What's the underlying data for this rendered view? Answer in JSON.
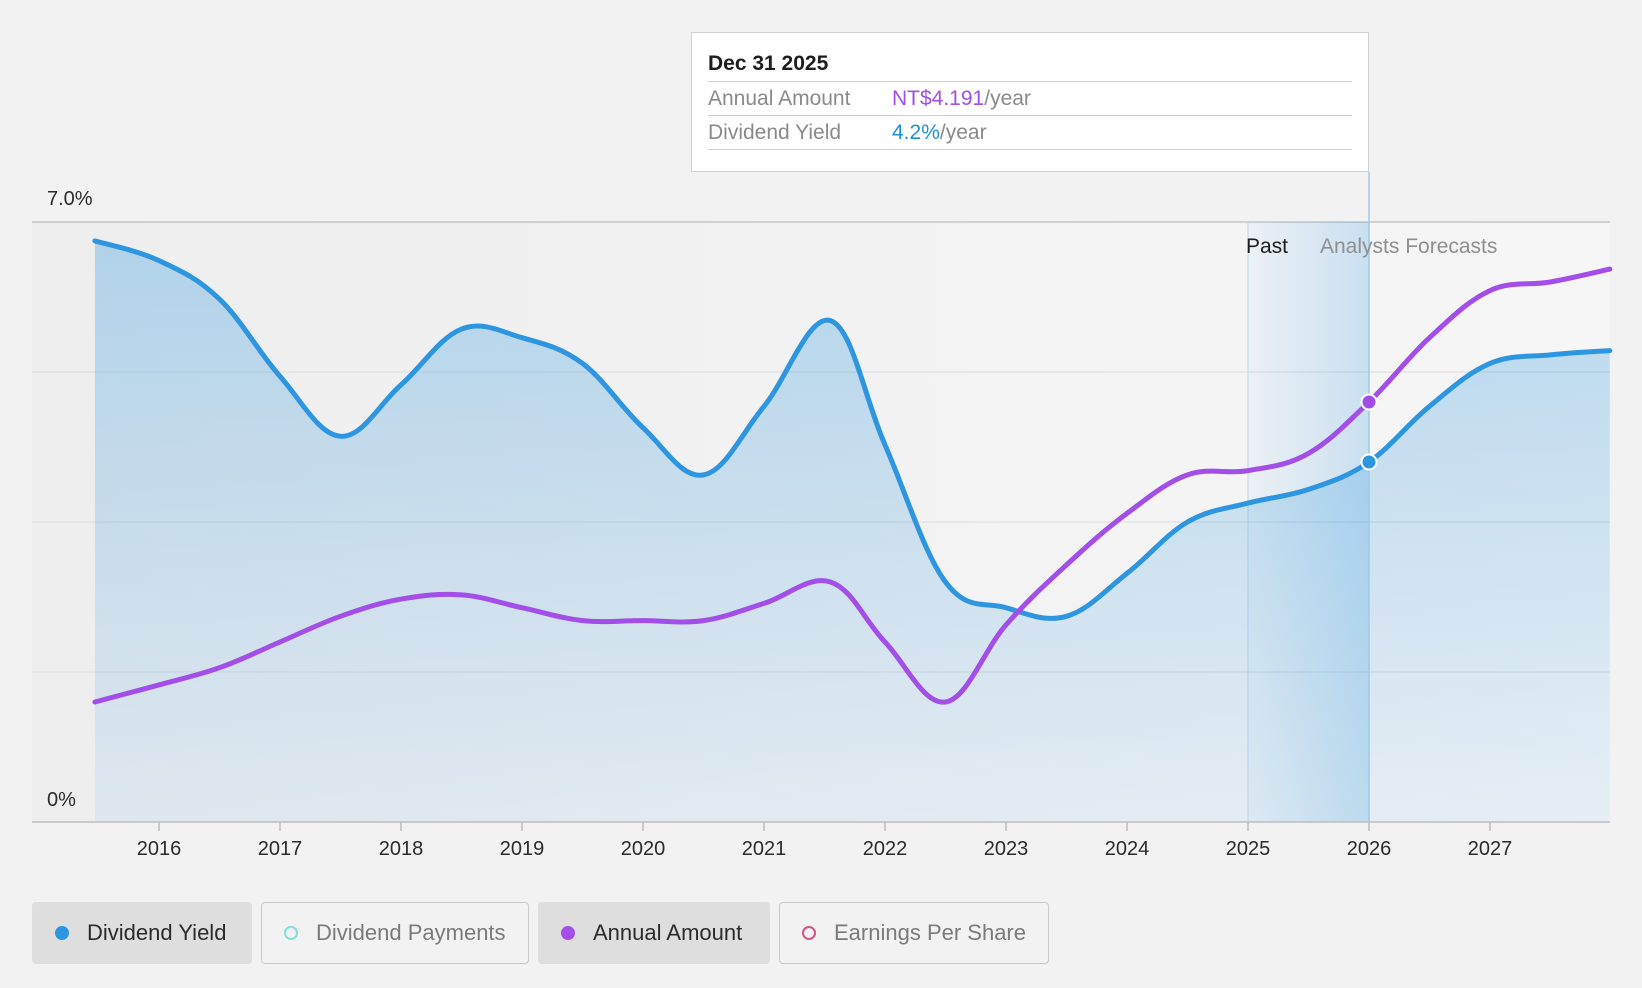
{
  "chart_data": {
    "type": "area",
    "y_axis": {
      "top_label": "7.0%",
      "bottom_label": "0%",
      "ylim": [
        0,
        7.0
      ]
    },
    "x_axis": {
      "tick_labels": [
        "2016",
        "2017",
        "2018",
        "2019",
        "2020",
        "2021",
        "2022",
        "2023",
        "2024",
        "2025",
        "2026",
        "2027"
      ],
      "xlim": [
        2015.5,
        2027.99
      ]
    },
    "grid": true,
    "regions": {
      "past_label": "Past",
      "forecast_label": "Analysts Forecasts"
    },
    "series": [
      {
        "name": "Dividend Yield",
        "unit": "%",
        "color": "#2e96e0",
        "fill": true,
        "points": [
          [
            2015.47,
            6.78
          ],
          [
            2016.0,
            6.55
          ],
          [
            2016.5,
            6.1
          ],
          [
            2017.0,
            5.2
          ],
          [
            2017.5,
            4.5
          ],
          [
            2018.0,
            5.1
          ],
          [
            2018.5,
            5.75
          ],
          [
            2019.0,
            5.65
          ],
          [
            2019.5,
            5.35
          ],
          [
            2020.0,
            4.6
          ],
          [
            2020.5,
            4.05
          ],
          [
            2021.0,
            4.85
          ],
          [
            2021.55,
            5.85
          ],
          [
            2022.0,
            4.4
          ],
          [
            2022.5,
            2.8
          ],
          [
            2023.0,
            2.5
          ],
          [
            2023.5,
            2.4
          ],
          [
            2024.0,
            2.9
          ],
          [
            2024.5,
            3.5
          ],
          [
            2025.0,
            3.72
          ],
          [
            2025.5,
            3.88
          ],
          [
            2026.0,
            4.2
          ],
          [
            2026.5,
            4.85
          ],
          [
            2027.0,
            5.35
          ],
          [
            2027.5,
            5.45
          ],
          [
            2027.99,
            5.5
          ]
        ]
      },
      {
        "name": "Annual Amount",
        "color": "#a34ee8",
        "fill": false,
        "points": [
          [
            2015.47,
            1.4
          ],
          [
            2016.0,
            1.6
          ],
          [
            2016.5,
            1.8
          ],
          [
            2017.0,
            2.1
          ],
          [
            2017.5,
            2.4
          ],
          [
            2018.0,
            2.6
          ],
          [
            2018.5,
            2.65
          ],
          [
            2019.0,
            2.5
          ],
          [
            2019.5,
            2.35
          ],
          [
            2020.0,
            2.35
          ],
          [
            2020.5,
            2.35
          ],
          [
            2021.0,
            2.55
          ],
          [
            2021.55,
            2.8
          ],
          [
            2022.0,
            2.1
          ],
          [
            2022.5,
            1.4
          ],
          [
            2023.0,
            2.3
          ],
          [
            2023.5,
            3.0
          ],
          [
            2024.0,
            3.6
          ],
          [
            2024.5,
            4.05
          ],
          [
            2025.0,
            4.1
          ],
          [
            2025.5,
            4.3
          ],
          [
            2026.0,
            4.9
          ],
          [
            2026.5,
            5.65
          ],
          [
            2027.0,
            6.2
          ],
          [
            2027.5,
            6.3
          ],
          [
            2027.99,
            6.45
          ]
        ]
      }
    ],
    "markers": [
      {
        "series": "Dividend Yield",
        "x": 2026.0,
        "y": 4.2
      },
      {
        "series": "Annual Amount",
        "x": 2026.0,
        "y": 4.9
      }
    ],
    "forecast_start_x": 2025.0,
    "cursor_x": 2026.0
  },
  "tooltip": {
    "date": "Dec 31 2025",
    "rows": [
      {
        "key": "Annual Amount",
        "value": "NT$4.191",
        "suffix": "/year"
      },
      {
        "key": "Dividend Yield",
        "value": "4.2%",
        "suffix": "/year"
      }
    ]
  },
  "legend": [
    {
      "label": "Dividend Yield",
      "color": "#2e96e0",
      "active": true,
      "filled": true
    },
    {
      "label": "Dividend Payments",
      "color": "#7fe0d8",
      "active": false,
      "filled": false
    },
    {
      "label": "Annual Amount",
      "color": "#a34ee8",
      "active": true,
      "filled": true
    },
    {
      "label": "Earnings Per Share",
      "color": "#d0558a",
      "active": false,
      "filled": false
    }
  ]
}
